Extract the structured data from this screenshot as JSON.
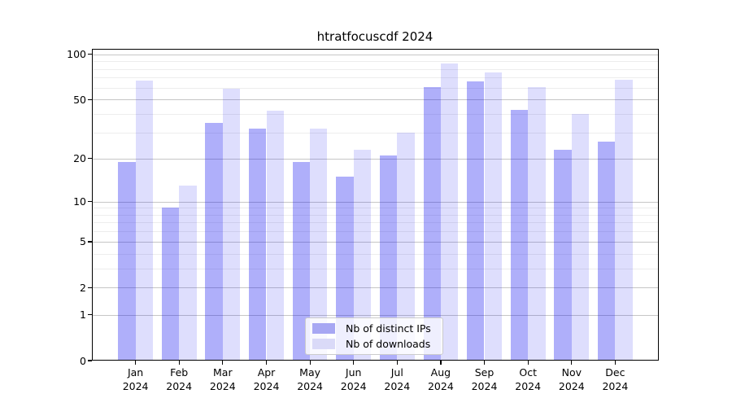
{
  "chart_data": {
    "type": "bar",
    "title": "htratfocuscdf 2024",
    "x_categories": [
      "Jan",
      "Feb",
      "Mar",
      "Apr",
      "May",
      "Jun",
      "Jul",
      "Aug",
      "Sep",
      "Oct",
      "Nov",
      "Dec"
    ],
    "x_year": "2024",
    "series": [
      {
        "name": "Nb of distinct IPs",
        "values": [
          19,
          9,
          35,
          32,
          19,
          15,
          21,
          61,
          66,
          43,
          23,
          26
        ],
        "fill": "rgba(20,20,240,0.34)",
        "swatch": "#a7a7f3"
      },
      {
        "name": "Nb of downloads",
        "values": [
          67,
          13,
          59,
          42,
          32,
          23,
          30,
          87,
          76,
          61,
          40,
          68
        ],
        "fill": "rgba(20,20,240,0.14)",
        "swatch": "#dadaf8"
      }
    ],
    "y_axis": {
      "scale": "log10(value+1)",
      "major_ticks": [
        0,
        1,
        2,
        5,
        10,
        20,
        50,
        100
      ],
      "minor_ticks": [
        3,
        4,
        6,
        7,
        8,
        9,
        30,
        40,
        60,
        70,
        80,
        90
      ],
      "ylim": [
        0,
        101
      ]
    },
    "legend_position": "lower center",
    "grid": true
  }
}
